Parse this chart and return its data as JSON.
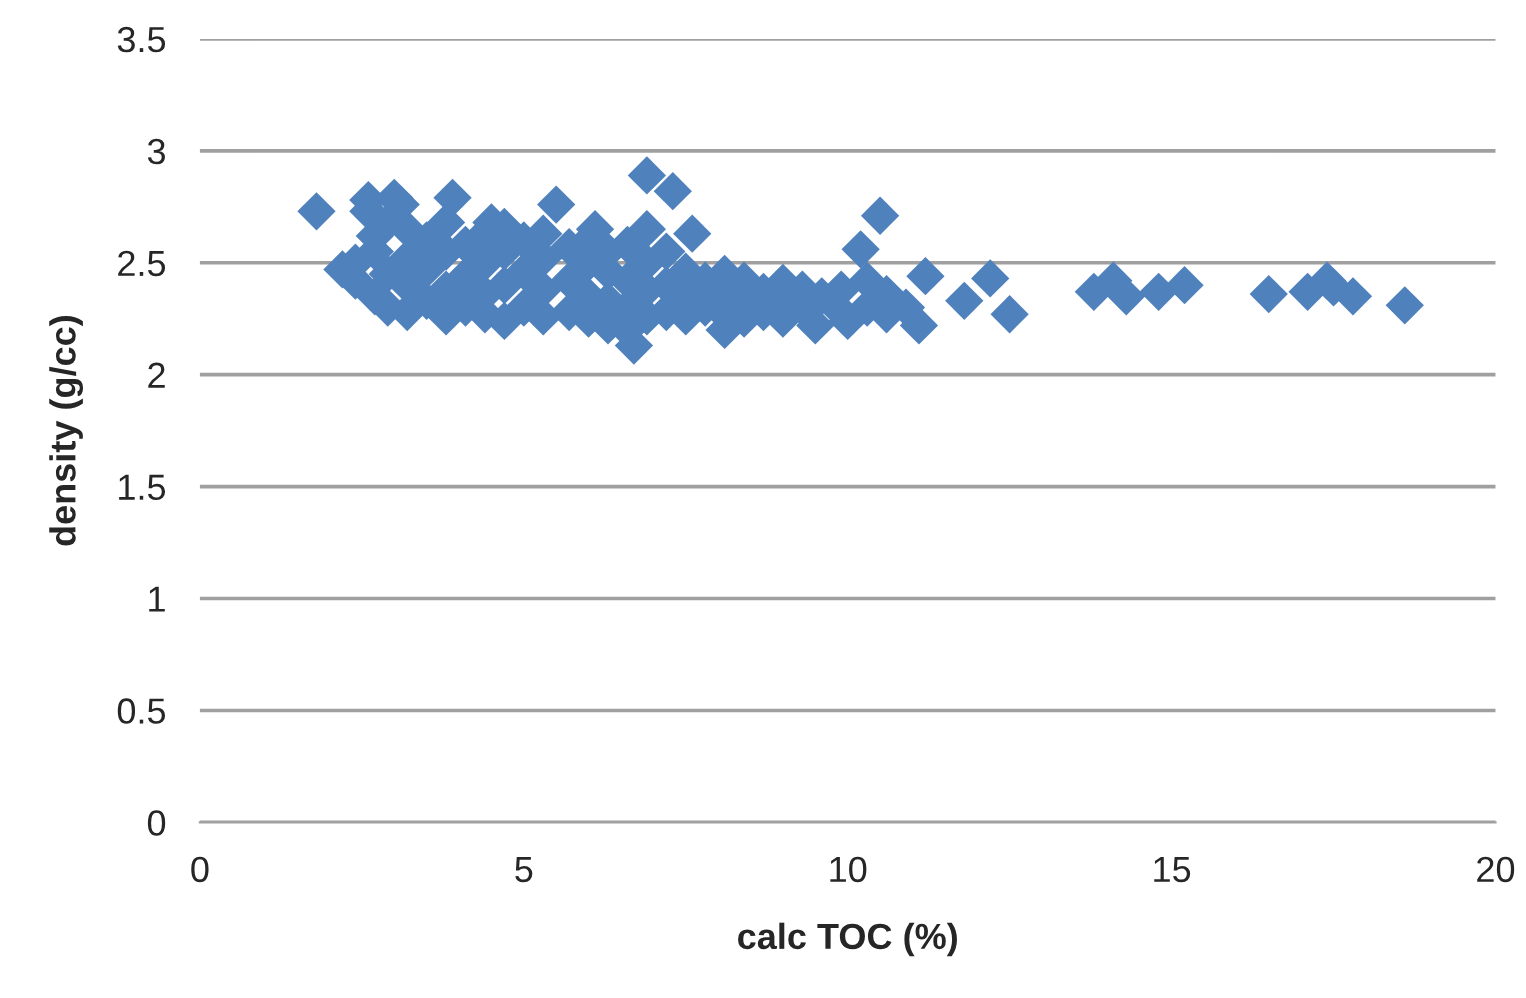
{
  "chart_data": {
    "type": "scatter",
    "xlabel": "calc TOC (%)",
    "ylabel": "density (g/cc)",
    "series": [
      {
        "color": "#4f81bd",
        "x": [
          1.8,
          2.2,
          2.6,
          2.6,
          3.0,
          3.1,
          3.9,
          4.5,
          5.5,
          6.1,
          6.9,
          7.3,
          7.6,
          10.5,
          10.2,
          12.2,
          12.5,
          11.8,
          11.2,
          11.1,
          13.8,
          14.1,
          14.3,
          14.8,
          15.2,
          16.5,
          17.1,
          17.4,
          17.5,
          17.8,
          18.6,
          6.7,
          8.1,
          9.5,
          10.0,
          2.4,
          2.4,
          2.7,
          2.7,
          2.7,
          2.9,
          2.9,
          2.9,
          3.2,
          3.2,
          3.2,
          3.2,
          3.5,
          3.5,
          3.5,
          3.8,
          3.8,
          3.8,
          3.8,
          4.1,
          4.1,
          4.1,
          4.4,
          4.4,
          4.4,
          4.4,
          4.7,
          4.7,
          4.7,
          4.7,
          5.0,
          5.0,
          5.0,
          5.3,
          5.3,
          5.3,
          5.3,
          5.7,
          5.7,
          5.7,
          6.0,
          6.0,
          6.0,
          6.0,
          6.3,
          6.3,
          6.3,
          6.3,
          6.6,
          6.6,
          6.6,
          6.6,
          6.9,
          6.9,
          6.9,
          6.9,
          7.2,
          7.2,
          7.2,
          7.5,
          7.5,
          7.5,
          7.8,
          7.8,
          8.1,
          8.1,
          8.1,
          8.4,
          8.4,
          8.4,
          8.7,
          8.7,
          9.0,
          9.0,
          9.0,
          9.3,
          9.3,
          9.6,
          9.9,
          9.9,
          10.3,
          10.3,
          10.6,
          10.6,
          10.9
        ],
        "values": [
          2.73,
          2.47,
          2.78,
          2.73,
          2.79,
          2.76,
          2.79,
          2.68,
          2.76,
          2.65,
          2.89,
          2.82,
          2.63,
          2.71,
          2.56,
          2.43,
          2.27,
          2.33,
          2.44,
          2.22,
          2.37,
          2.42,
          2.35,
          2.37,
          2.4,
          2.36,
          2.37,
          2.42,
          2.39,
          2.35,
          2.31,
          2.13,
          2.2,
          2.22,
          2.24,
          2.42,
          2.5,
          2.35,
          2.55,
          2.62,
          2.3,
          2.45,
          2.68,
          2.28,
          2.4,
          2.52,
          2.65,
          2.33,
          2.47,
          2.6,
          2.26,
          2.38,
          2.55,
          2.68,
          2.3,
          2.44,
          2.58,
          2.27,
          2.36,
          2.5,
          2.63,
          2.24,
          2.4,
          2.55,
          2.66,
          2.3,
          2.46,
          2.6,
          2.26,
          2.38,
          2.52,
          2.63,
          2.28,
          2.42,
          2.57,
          2.25,
          2.35,
          2.5,
          2.6,
          2.22,
          2.33,
          2.46,
          2.55,
          2.2,
          2.3,
          2.42,
          2.58,
          2.26,
          2.38,
          2.5,
          2.65,
          2.28,
          2.4,
          2.55,
          2.26,
          2.35,
          2.46,
          2.3,
          2.42,
          2.27,
          2.38,
          2.45,
          2.25,
          2.33,
          2.42,
          2.28,
          2.37,
          2.25,
          2.32,
          2.41,
          2.3,
          2.38,
          2.35,
          2.28,
          2.38,
          2.3,
          2.42,
          2.27,
          2.36,
          2.3
        ]
      }
    ],
    "xlim": [
      0,
      20
    ],
    "xticks": [
      0,
      5,
      10,
      15,
      20
    ],
    "ylim": [
      0,
      3.5
    ],
    "yticks": [
      0,
      0.5,
      1,
      1.5,
      2,
      2.5,
      3,
      3.5
    ],
    "grid": "y",
    "marker": "diamond",
    "legend": false
  }
}
